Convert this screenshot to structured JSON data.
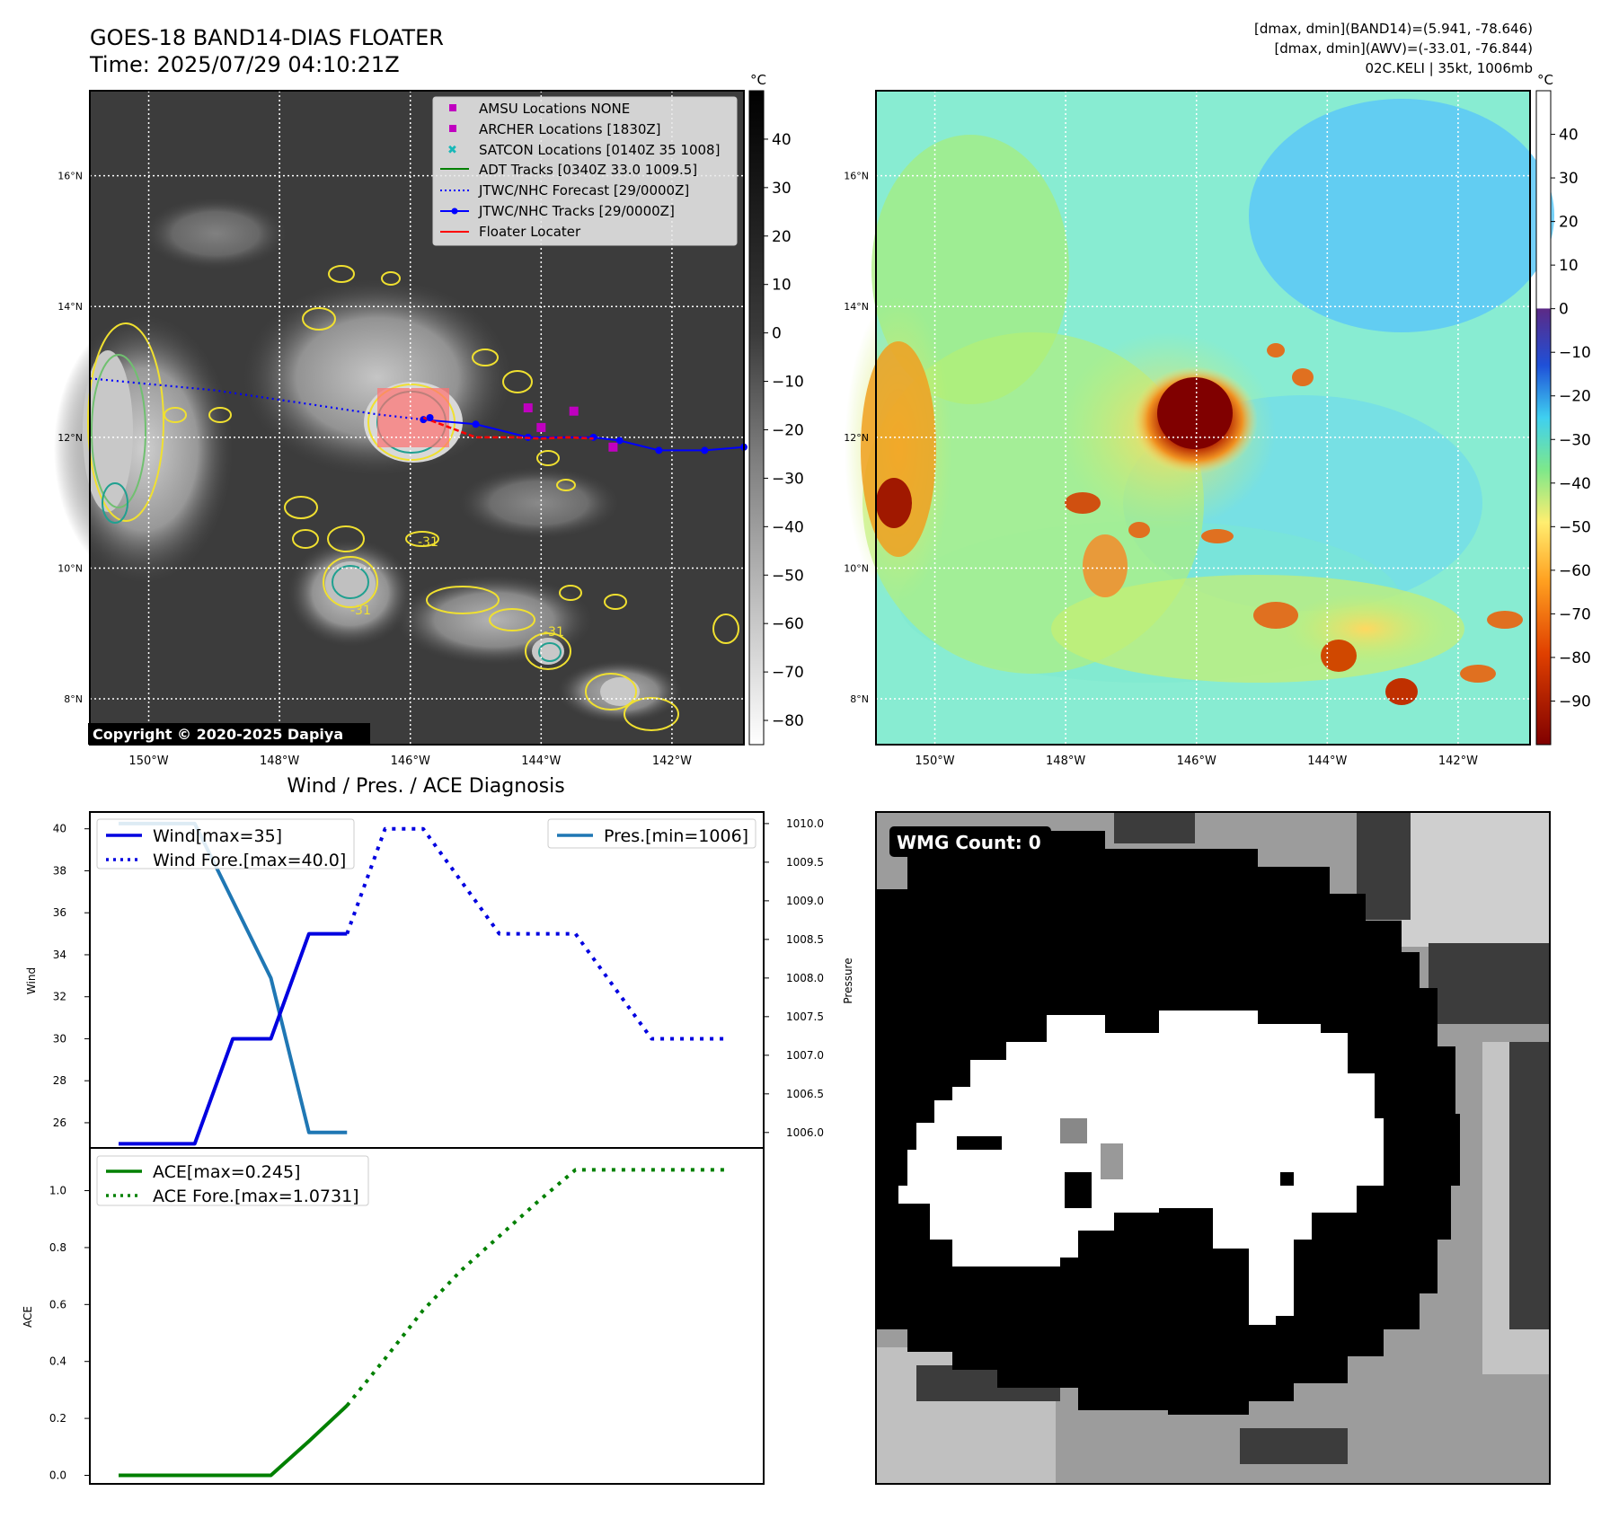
{
  "header": {
    "title_line1": "GOES-18 BAND14-DIAS FLOATER",
    "title_line2": "Time: 2025/07/29 04:10:21Z",
    "info_line1": "[dmax, dmin](BAND14)=(5.941, -78.646)",
    "info_line2": "[dmax, dmin](AWV)=(-33.01, -76.844)",
    "info_line3": "02C.KELI | 35kt, 1006mb"
  },
  "map_axes": {
    "lat_labels": [
      "16°N",
      "14°N",
      "12°N",
      "10°N",
      "8°N"
    ],
    "lat_values": [
      16,
      14,
      12,
      10,
      8
    ],
    "lon_labels": [
      "150°W",
      "148°W",
      "146°W",
      "144°W",
      "142°W"
    ],
    "lon_values": [
      -150,
      -148,
      -146,
      -144,
      -142
    ],
    "lon_range": [
      -150.9,
      -140.9
    ],
    "lat_range": [
      7.3,
      17.3
    ]
  },
  "ir_panel": {
    "colorbar_unit": "°C",
    "colorbar_ticks": [
      "40",
      "30",
      "20",
      "10",
      "0",
      "−10",
      "−20",
      "−30",
      "−40",
      "−50",
      "−60",
      "−70",
      "−80"
    ],
    "colorbar_values": [
      40,
      30,
      20,
      10,
      0,
      -10,
      -20,
      -30,
      -40,
      -50,
      -60,
      -70,
      -80
    ],
    "colorbar_range": [
      -85,
      50
    ],
    "copyright": "Copyright © 2020-2025 Dapiya",
    "contour_label": "-31",
    "legend": [
      {
        "label": "AMSU Locations NONE",
        "marker": "square",
        "color": "#c000c0"
      },
      {
        "label": "ARCHER Locations [1830Z]",
        "marker": "square",
        "color": "#c000c0"
      },
      {
        "label": "SATCON Locations [0140Z 35 1008]",
        "marker": "x",
        "color": "#18b8b8"
      },
      {
        "label": "ADT Tracks [0340Z 33.0 1009.5]",
        "marker": "line",
        "color": "#008000"
      },
      {
        "label": "JTWC/NHC Forecast [29/0000Z]",
        "marker": "dotted",
        "color": "#0000ff"
      },
      {
        "label": "JTWC/NHC Tracks [29/0000Z]",
        "marker": "line-dot",
        "color": "#0000ff"
      },
      {
        "label": "Floater Locater",
        "marker": "line",
        "color": "#ff0000"
      }
    ],
    "forecast_track": {
      "lon": [
        -150.9,
        -149.0,
        -147.5,
        -146.5,
        -145.8
      ],
      "lat": [
        12.9,
        12.72,
        12.5,
        12.35,
        12.27
      ]
    },
    "best_track": {
      "lon": [
        -145.8,
        -145.0,
        -144.2,
        -143.2,
        -142.8,
        -142.2,
        -141.5,
        -140.9
      ],
      "lat": [
        12.27,
        12.2,
        12.0,
        12.0,
        11.95,
        11.8,
        11.8,
        11.85
      ]
    },
    "floater_track": {
      "lon": [
        -145.8,
        -145.0,
        -144.4,
        -144.0,
        -143.6,
        -143.2
      ],
      "lat": [
        12.3,
        12.0,
        12.0,
        11.98,
        12.0,
        11.98
      ]
    },
    "archer_points": {
      "lon": [
        -144.2,
        -144.0,
        -143.5,
        -142.9
      ],
      "lat": [
        12.45,
        12.15,
        12.4,
        11.85
      ]
    },
    "storm_center": {
      "lon": [
        -145.7
      ],
      "lat": [
        12.3
      ]
    }
  },
  "wv_panel": {
    "colorbar_unit": "°C",
    "colorbar_ticks": [
      "40",
      "30",
      "20",
      "10",
      "0",
      "−10",
      "−20",
      "−30",
      "−40",
      "−50",
      "−60",
      "−70",
      "−80",
      "−90"
    ],
    "colorbar_values": [
      40,
      30,
      20,
      10,
      0,
      -10,
      -20,
      -30,
      -40,
      -50,
      -60,
      -70,
      -80,
      -90
    ],
    "colorbar_range": [
      -100,
      50
    ]
  },
  "chart_data": [
    {
      "type": "line",
      "title": "Wind / Pres. / ACE Diagnosis",
      "xlabel": "",
      "ylabel": "Wind",
      "ylabel_right": "Pressure",
      "x": [
        0,
        1,
        2,
        3,
        4,
        5,
        6,
        7,
        8,
        9,
        10,
        11,
        12,
        13,
        14,
        15,
        16
      ],
      "ylim": [
        24.8,
        40.8
      ],
      "y2lim": [
        1005.8,
        1010.15
      ],
      "y_ticks": [
        26,
        28,
        30,
        32,
        34,
        36,
        38,
        40
      ],
      "y2_ticks": [
        1006.0,
        1006.5,
        1007.0,
        1007.5,
        1008.0,
        1008.5,
        1009.0,
        1009.5,
        1010.0
      ],
      "series": [
        {
          "name": "Wind[max=35]",
          "axis": "left",
          "style": "solid",
          "color": "#0000e0",
          "x": [
            0,
            1,
            2,
            3,
            4,
            5,
            6
          ],
          "values": [
            25,
            25,
            25,
            30,
            30,
            35,
            35
          ]
        },
        {
          "name": "Wind Fore.[max=40.0]",
          "axis": "left",
          "style": "dotted",
          "color": "#0000e0",
          "x": [
            6,
            7,
            8,
            9,
            10,
            11,
            12,
            13,
            14,
            15,
            16
          ],
          "values": [
            35,
            40,
            40,
            37.5,
            35,
            35,
            35,
            32.5,
            30,
            30,
            30
          ]
        },
        {
          "name": "Pres.[min=1006]",
          "axis": "right",
          "style": "solid",
          "color": "#1f77b4",
          "x": [
            0,
            1,
            2,
            3,
            4,
            5,
            6
          ],
          "values": [
            1010,
            1010,
            1010,
            1009,
            1008,
            1006,
            1006
          ]
        }
      ]
    },
    {
      "type": "line",
      "xlabel": "",
      "ylabel": "ACE",
      "x": [
        0,
        1,
        2,
        3,
        4,
        5,
        6,
        7,
        8,
        9,
        10,
        11,
        12,
        13,
        14,
        15,
        16
      ],
      "ylim": [
        -0.03,
        1.15
      ],
      "y_ticks": [
        0.0,
        0.2,
        0.4,
        0.6,
        0.8,
        1.0
      ],
      "series": [
        {
          "name": "ACE[max=0.245]",
          "style": "solid",
          "color": "#008000",
          "x": [
            0,
            1,
            2,
            3,
            4,
            5,
            6
          ],
          "values": [
            0,
            0,
            0,
            0,
            0,
            0.12,
            0.245
          ]
        },
        {
          "name": "ACE Fore.[max=1.0731]",
          "style": "dotted",
          "color": "#008000",
          "x": [
            6,
            7,
            8,
            9,
            10,
            11,
            12,
            13,
            14,
            15,
            16
          ],
          "values": [
            0.245,
            0.41,
            0.58,
            0.72,
            0.84,
            0.96,
            1.0731,
            1.0731,
            1.0731,
            1.0731,
            1.0731
          ]
        }
      ]
    }
  ],
  "wmg_panel": {
    "label": "WMG Count: 0"
  }
}
